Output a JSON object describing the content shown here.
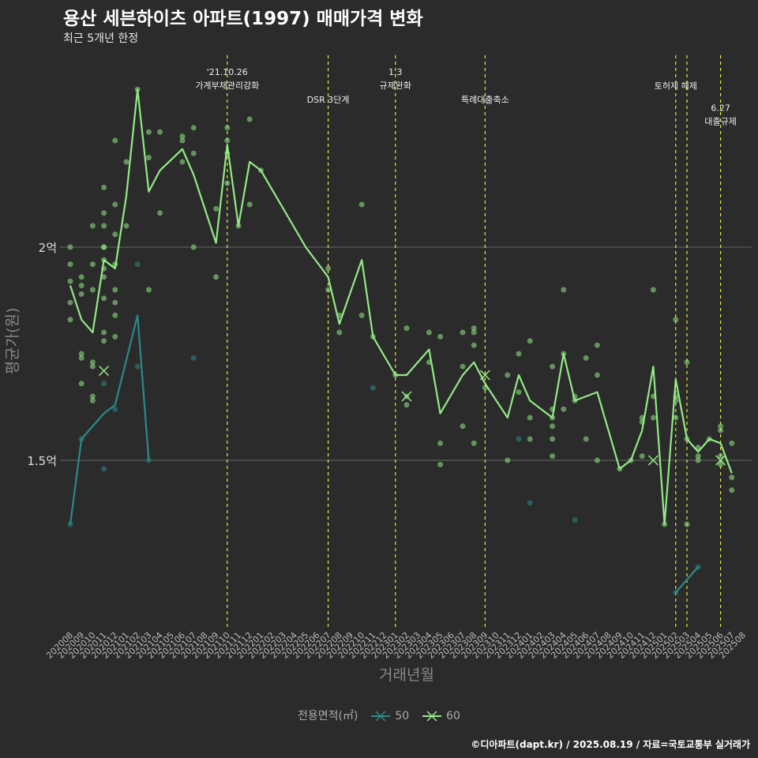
{
  "title": "용산 세븐하이츠 아파트(1997) 매매가격 변화",
  "subtitle": "최근 5개년 한정",
  "caption": "©디아파트(dapt.kr) / 2025.08.19 / 자료=국토교통부 실거래가",
  "legend": {
    "title": "전용면적(㎡)",
    "items": [
      "50",
      "60"
    ]
  },
  "colors": {
    "background": "#2b2b2b",
    "series_50": "#2a8a8a",
    "series_60": "#93e986",
    "event_line": "#e8e83a",
    "grid": "#666666"
  },
  "chart_data": {
    "type": "line",
    "xlabel": "거래년월",
    "ylabel": "평균가(원)",
    "categories": [
      "202008",
      "202009",
      "202010",
      "202011",
      "202012",
      "202101",
      "202102",
      "202103",
      "202104",
      "202105",
      "202106",
      "202107",
      "202108",
      "202109",
      "202110",
      "202111",
      "202112",
      "202201",
      "202202",
      "202203",
      "202204",
      "202205",
      "202206",
      "202207",
      "202208",
      "202209",
      "202210",
      "202211",
      "202212",
      "202301",
      "202302",
      "202303",
      "202304",
      "202305",
      "202306",
      "202307",
      "202308",
      "202309",
      "202310",
      "202311",
      "202312",
      "202401",
      "202402",
      "202403",
      "202404",
      "202405",
      "202406",
      "202407",
      "202408",
      "202409",
      "202410",
      "202411",
      "202412",
      "202501",
      "202502",
      "202503",
      "202504",
      "202505",
      "202506",
      "202507",
      "202508"
    ],
    "y_ticks": [
      {
        "label": "1.5억",
        "value": 1.5
      },
      {
        "label": "2억",
        "value": 2.0
      }
    ],
    "ylim": [
      1.1,
      2.5
    ],
    "series": [
      {
        "name": "50",
        "color": "#2a8a8a",
        "line": [
          [
            "202008",
            1.35
          ],
          [
            "202009",
            1.55
          ],
          [
            "202011",
            1.61
          ],
          [
            "202012",
            1.63
          ],
          [
            "202102",
            1.84
          ],
          [
            "202103",
            1.5
          ],
          [
            null,
            null
          ],
          [
            "202502",
            1.19
          ],
          [
            "202504",
            1.25
          ]
        ],
        "points": [
          [
            "202008",
            1.35
          ],
          [
            "202009",
            1.55
          ],
          [
            "202011",
            1.68
          ],
          [
            "202011",
            1.48
          ],
          [
            "202012",
            1.62
          ],
          [
            "202102",
            1.96
          ],
          [
            "202102",
            1.72
          ],
          [
            "202103",
            1.5
          ],
          [
            "202107",
            1.74
          ],
          [
            "202211",
            1.67
          ],
          [
            "202312",
            1.55
          ],
          [
            "202401",
            1.4
          ],
          [
            "202405",
            1.36
          ],
          [
            "202502",
            1.19
          ],
          [
            "202504",
            1.25
          ]
        ],
        "cross": []
      },
      {
        "name": "60",
        "color": "#93e986",
        "line": [
          [
            "202008",
            1.91
          ],
          [
            "202009",
            1.83
          ],
          [
            "202010",
            1.8
          ],
          [
            "202011",
            1.97
          ],
          [
            "202012",
            1.95
          ],
          [
            "202101",
            2.12
          ],
          [
            "202102",
            2.37
          ],
          [
            "202103",
            2.13
          ],
          [
            "202104",
            2.18
          ],
          [
            "202106",
            2.23
          ],
          [
            "202107",
            2.17
          ],
          [
            "202109",
            2.01
          ],
          [
            "202110",
            2.24
          ],
          [
            "202111",
            2.05
          ],
          [
            "202112",
            2.2
          ],
          [
            "202201",
            2.18
          ],
          [
            "202205",
            2.0
          ],
          [
            "202207",
            1.93
          ],
          [
            "202208",
            1.82
          ],
          [
            "202210",
            1.97
          ],
          [
            "202211",
            1.79
          ],
          [
            "202301",
            1.7
          ],
          [
            "202302",
            1.7
          ],
          [
            "202304",
            1.76
          ],
          [
            "202305",
            1.61
          ],
          [
            "202307",
            1.7
          ],
          [
            "202308",
            1.73
          ],
          [
            "202309",
            1.68
          ],
          [
            "202311",
            1.6
          ],
          [
            "202312",
            1.7
          ],
          [
            "202401",
            1.64
          ],
          [
            "202403",
            1.6
          ],
          [
            "202404",
            1.75
          ],
          [
            "202405",
            1.64
          ],
          [
            "202406",
            1.65
          ],
          [
            "202407",
            1.66
          ],
          [
            "202409",
            1.48
          ],
          [
            "202410",
            1.5
          ],
          [
            "202411",
            1.57
          ],
          [
            "202412",
            1.72
          ],
          [
            "202501",
            1.35
          ],
          [
            "202502",
            1.69
          ],
          [
            "202503",
            1.55
          ],
          [
            "202504",
            1.52
          ],
          [
            "202505",
            1.55
          ],
          [
            "202506",
            1.54
          ],
          [
            "202507",
            1.47
          ]
        ],
        "points": [
          [
            "202008",
            2.0
          ],
          [
            "202008",
            1.96
          ],
          [
            "202008",
            1.92
          ],
          [
            "202008",
            1.87
          ],
          [
            "202008",
            1.83
          ],
          [
            "202009",
            1.93
          ],
          [
            "202009",
            1.91
          ],
          [
            "202009",
            1.89
          ],
          [
            "202009",
            1.75
          ],
          [
            "202009",
            1.74
          ],
          [
            "202009",
            1.68
          ],
          [
            "202010",
            2.05
          ],
          [
            "202010",
            1.96
          ],
          [
            "202010",
            1.9
          ],
          [
            "202010",
            1.73
          ],
          [
            "202010",
            1.72
          ],
          [
            "202010",
            1.65
          ],
          [
            "202010",
            1.64
          ],
          [
            "202011",
            2.14
          ],
          [
            "202011",
            2.08
          ],
          [
            "202011",
            2.05
          ],
          [
            "202011",
            2.0
          ],
          [
            "202011",
            2.0
          ],
          [
            "202011",
            1.97
          ],
          [
            "202011",
            1.95
          ],
          [
            "202011",
            1.93
          ],
          [
            "202011",
            1.88
          ],
          [
            "202011",
            1.8
          ],
          [
            "202011",
            1.78
          ],
          [
            "202012",
            2.25
          ],
          [
            "202012",
            2.1
          ],
          [
            "202012",
            2.03
          ],
          [
            "202012",
            1.96
          ],
          [
            "202012",
            1.9
          ],
          [
            "202012",
            1.87
          ],
          [
            "202012",
            1.84
          ],
          [
            "202012",
            1.79
          ],
          [
            "202101",
            2.2
          ],
          [
            "202101",
            2.05
          ],
          [
            "202102",
            2.37
          ],
          [
            "202103",
            2.27
          ],
          [
            "202103",
            2.21
          ],
          [
            "202103",
            1.9
          ],
          [
            "202104",
            2.27
          ],
          [
            "202104",
            2.08
          ],
          [
            "202106",
            2.26
          ],
          [
            "202106",
            2.25
          ],
          [
            "202106",
            2.2
          ],
          [
            "202107",
            2.28
          ],
          [
            "202107",
            2.22
          ],
          [
            "202107",
            2.0
          ],
          [
            "202109",
            2.09
          ],
          [
            "202109",
            1.93
          ],
          [
            "202110",
            2.28
          ],
          [
            "202110",
            2.25
          ],
          [
            "202110",
            2.22
          ],
          [
            "202110",
            2.15
          ],
          [
            "202111",
            2.05
          ],
          [
            "202112",
            2.3
          ],
          [
            "202112",
            2.1
          ],
          [
            "202201",
            2.18
          ],
          [
            "202207",
            1.95
          ],
          [
            "202207",
            1.9
          ],
          [
            "202208",
            1.84
          ],
          [
            "202208",
            1.8
          ],
          [
            "202210",
            2.1
          ],
          [
            "202210",
            1.84
          ],
          [
            "202211",
            1.79
          ],
          [
            "202301",
            1.7
          ],
          [
            "202302",
            1.81
          ],
          [
            "202302",
            1.65
          ],
          [
            "202302",
            1.63
          ],
          [
            "202304",
            1.8
          ],
          [
            "202304",
            1.73
          ],
          [
            "202305",
            1.79
          ],
          [
            "202305",
            1.54
          ],
          [
            "202305",
            1.49
          ],
          [
            "202307",
            1.8
          ],
          [
            "202307",
            1.72
          ],
          [
            "202307",
            1.58
          ],
          [
            "202308",
            1.81
          ],
          [
            "202308",
            1.8
          ],
          [
            "202308",
            1.77
          ],
          [
            "202308",
            1.54
          ],
          [
            "202309",
            1.67
          ],
          [
            "202311",
            1.7
          ],
          [
            "202311",
            1.5
          ],
          [
            "202312",
            1.75
          ],
          [
            "202312",
            1.66
          ],
          [
            "202401",
            1.78
          ],
          [
            "202401",
            1.6
          ],
          [
            "202401",
            1.55
          ],
          [
            "202403",
            1.72
          ],
          [
            "202403",
            1.62
          ],
          [
            "202403",
            1.58
          ],
          [
            "202403",
            1.6
          ],
          [
            "202403",
            1.55
          ],
          [
            "202403",
            1.51
          ],
          [
            "202404",
            1.9
          ],
          [
            "202404",
            1.75
          ],
          [
            "202404",
            1.62
          ],
          [
            "202405",
            1.65
          ],
          [
            "202405",
            1.64
          ],
          [
            "202406",
            1.74
          ],
          [
            "202406",
            1.55
          ],
          [
            "202407",
            1.77
          ],
          [
            "202407",
            1.7
          ],
          [
            "202407",
            1.5
          ],
          [
            "202409",
            1.48
          ],
          [
            "202410",
            1.5
          ],
          [
            "202411",
            1.6
          ],
          [
            "202411",
            1.59
          ],
          [
            "202411",
            1.51
          ],
          [
            "202412",
            1.9
          ],
          [
            "202412",
            1.65
          ],
          [
            "202412",
            1.6
          ],
          [
            "202501",
            1.35
          ],
          [
            "202502",
            1.83
          ],
          [
            "202502",
            1.65
          ],
          [
            "202502",
            1.64
          ],
          [
            "202502",
            1.6
          ],
          [
            "202503",
            1.73
          ],
          [
            "202503",
            1.55
          ],
          [
            "202503",
            1.35
          ],
          [
            "202504",
            1.53
          ],
          [
            "202504",
            1.51
          ],
          [
            "202504",
            1.5
          ],
          [
            "202505",
            1.55
          ],
          [
            "202506",
            1.58
          ],
          [
            "202506",
            1.57
          ],
          [
            "202506",
            1.51
          ],
          [
            "202506",
            1.49
          ],
          [
            "202507",
            1.54
          ],
          [
            "202507",
            1.46
          ],
          [
            "202507",
            1.43
          ]
        ],
        "cross": []
      }
    ],
    "crosses": [
      {
        "x": "202011",
        "y": 1.71,
        "color": "#93e986"
      },
      {
        "x": "202302",
        "y": 1.65,
        "color": "#93e986"
      },
      {
        "x": "202309",
        "y": 1.7,
        "color": "#93e986"
      },
      {
        "x": "202412",
        "y": 1.5,
        "color": "#93e986"
      },
      {
        "x": "202506",
        "y": 1.5,
        "color": "#93e986"
      }
    ],
    "events": [
      {
        "x": "202110",
        "lines": [
          "'21.10.26",
          "가계부채관리강화"
        ],
        "row": 0
      },
      {
        "x": "202207",
        "lines": [
          "DSR 3단계"
        ],
        "row": 1
      },
      {
        "x": "202301",
        "lines": [
          "1.3",
          "규제완화"
        ],
        "row": 0
      },
      {
        "x": "202309",
        "lines": [
          "특례대출축소"
        ],
        "row": 1
      },
      {
        "x": "202502",
        "lines": [
          "토허제 해제"
        ],
        "row": 0.5,
        "offset": 0
      },
      {
        "x": "202503",
        "lines": [],
        "row": 0
      },
      {
        "x": "202506",
        "lines": [
          "6.27",
          "대출규제"
        ],
        "row": 1.3
      }
    ]
  }
}
